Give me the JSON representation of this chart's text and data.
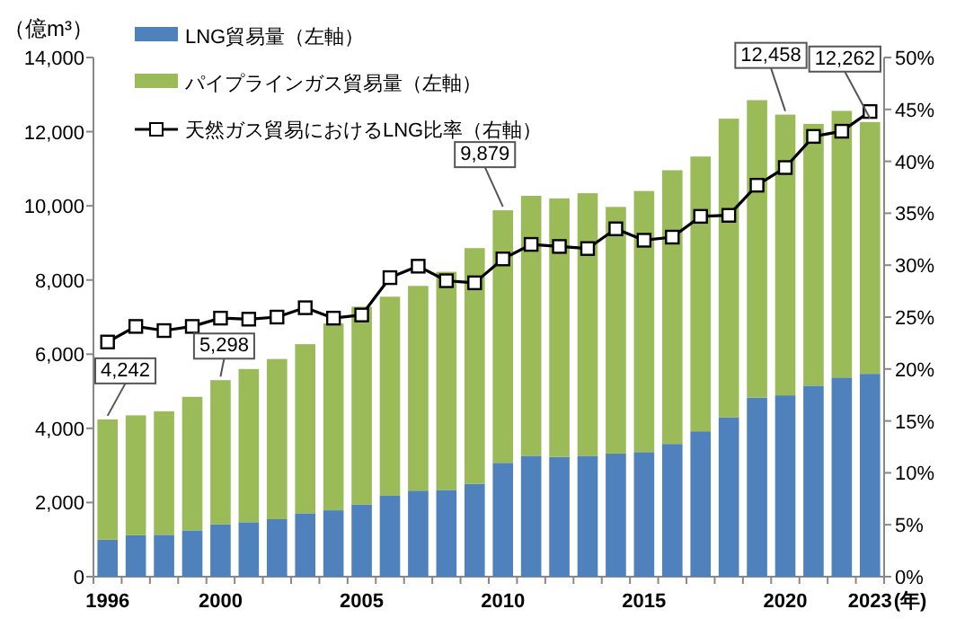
{
  "chart_data": {
    "type": "bar",
    "stacked": true,
    "ylabel": "（億m³）",
    "xlabel": "(年)",
    "categories": [
      "1996",
      null,
      null,
      null,
      "2000",
      null,
      null,
      null,
      null,
      "2005",
      null,
      null,
      null,
      null,
      "2010",
      null,
      null,
      null,
      null,
      "2015",
      null,
      null,
      null,
      null,
      "2020",
      null,
      null,
      "2023"
    ],
    "series": [
      {
        "name": "LNG貿易量（左軸）",
        "color": "#4f81bd",
        "values": [
          1000,
          1120,
          1130,
          1250,
          1410,
          1470,
          1550,
          1710,
          1790,
          1950,
          2180,
          2320,
          2340,
          2500,
          3070,
          3260,
          3230,
          3260,
          3320,
          3360,
          3580,
          3920,
          4300,
          4830,
          4890,
          5150,
          5370,
          5470
        ]
      },
      {
        "name": "パイプラインガス貿易量（左軸）",
        "color": "#9bbb59",
        "values": [
          3240,
          3230,
          3330,
          3600,
          3890,
          4130,
          4320,
          4560,
          5040,
          5330,
          5370,
          5520,
          5880,
          6360,
          6810,
          7010,
          6970,
          7080,
          6650,
          7040,
          7380,
          7410,
          8050,
          8020,
          7570,
          7060,
          7190,
          6790
        ]
      },
      {
        "name": "天然ガス貿易におけるLNG比率（右軸）",
        "type": "line",
        "axis": "y2",
        "color": "#000000",
        "marker": "square",
        "values": [
          22.6,
          24.1,
          23.7,
          24.1,
          24.9,
          24.8,
          25.0,
          25.9,
          24.9,
          25.2,
          28.8,
          29.9,
          28.5,
          28.3,
          30.6,
          32.0,
          31.8,
          31.6,
          33.5,
          32.4,
          32.7,
          34.7,
          34.8,
          37.7,
          39.4,
          42.4,
          42.9,
          44.8
        ]
      }
    ],
    "ylim": [
      0,
      14000
    ],
    "yticks": [
      {
        "value": 0,
        "label": "0"
      },
      {
        "value": 2000,
        "label": "2,000"
      },
      {
        "value": 4000,
        "label": "4,000"
      },
      {
        "value": 6000,
        "label": "6,000"
      },
      {
        "value": 8000,
        "label": "8,000"
      },
      {
        "value": 10000,
        "label": "10,000"
      },
      {
        "value": 12000,
        "label": "12,000"
      },
      {
        "value": 14000,
        "label": "14,000"
      }
    ],
    "y2lim": [
      0,
      50
    ],
    "y2ticks": [
      {
        "value": 0,
        "label": "0%"
      },
      {
        "value": 5,
        "label": "5%"
      },
      {
        "value": 10,
        "label": "10%"
      },
      {
        "value": 15,
        "label": "15%"
      },
      {
        "value": 20,
        "label": "20%"
      },
      {
        "value": 25,
        "label": "25%"
      },
      {
        "value": 30,
        "label": "30%"
      },
      {
        "value": 35,
        "label": "35%"
      },
      {
        "value": 40,
        "label": "40%"
      },
      {
        "value": 45,
        "label": "45%"
      },
      {
        "value": 50,
        "label": "50%"
      }
    ],
    "annotations": [
      {
        "text": "4,242",
        "x": "1996",
        "y": 4242
      },
      {
        "text": "5,298",
        "x": "2000",
        "y": 5298
      },
      {
        "text": "9,879",
        "x": "2010",
        "y": 9879
      },
      {
        "text": "12,458",
        "x": "2020",
        "y": 12458
      },
      {
        "text": "12,262",
        "x": "2023",
        "y": 12262
      }
    ],
    "legend": "top left",
    "grid": false
  }
}
